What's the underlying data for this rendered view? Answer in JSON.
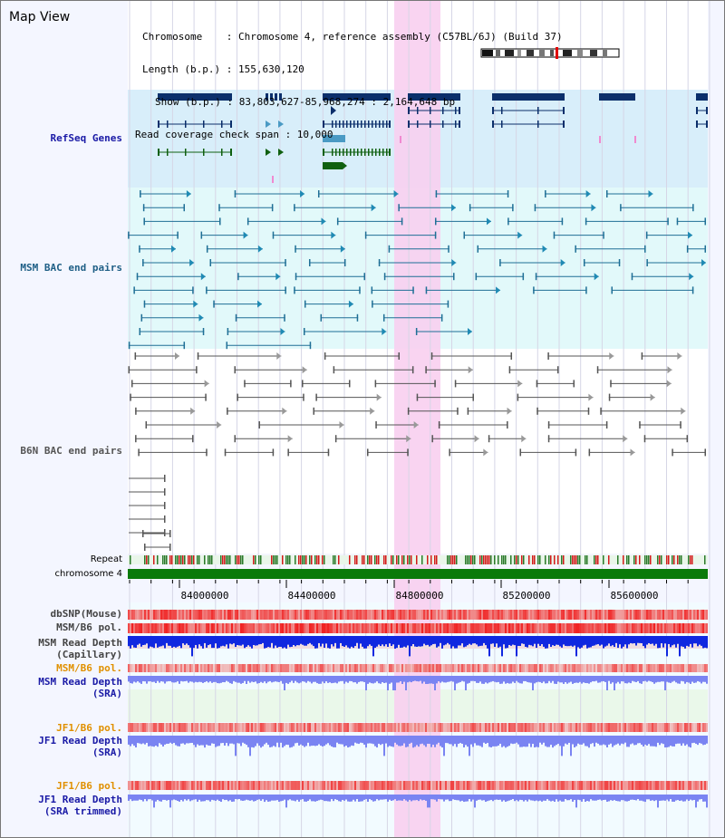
{
  "view_title": "Map View",
  "info": {
    "chromosome": "Chromosome    : Chromosome 4, reference assembly (C57BL/6J) (Build 37)",
    "length": "Length (b.p.) : 155,630,120",
    "show": "Show (b.p.) : 83,803,627-85,968,274 : 2,164,648 bp",
    "read_coverage": "Read coverage check span : 10,000"
  },
  "tracks": {
    "refseq": "RefSeq Genes",
    "msm_bac": "MSM BAC end pairs",
    "b6n_bac": "B6N BAC end pairs",
    "repeat": "Repeat",
    "chromosome": "chromosome 4",
    "dbsnp": "dbSNP(Mouse)",
    "msm_pol": "MSM/B6 pol.",
    "msm_depth_cap": "MSM Read Depth\n(Capillary)",
    "msm_pol2": "MSM/B6 pol.",
    "msm_depth_sra": "MSM Read Depth\n(SRA)",
    "jf1_pol": "JF1/B6 pol.",
    "jf1_depth_sra": "JF1 Read Depth\n(SRA)",
    "jf1_pol2": "JF1/B6 pol.",
    "jf1_depth_trim": "JF1 Read Depth\n(SRA trimmed)"
  },
  "axis": {
    "ticks": [
      "84000000",
      "84400000",
      "84800000",
      "85200000",
      "85600000"
    ]
  },
  "colors": {
    "gene_dark": "#0b2f6b",
    "gene_light": "#4a9ac4",
    "gene_green": "#106010",
    "msm_bac": "#1f6f96",
    "b6n_bac": "#555555",
    "highlight": "#f8cff0",
    "chromosome": "#0a7a0a",
    "depth_capillary": "#1028e0",
    "depth_sra": "#7a84f2",
    "label_blue": "#1a1aa6",
    "label_orange": "#e09000",
    "label_gray": "#444444"
  }
}
